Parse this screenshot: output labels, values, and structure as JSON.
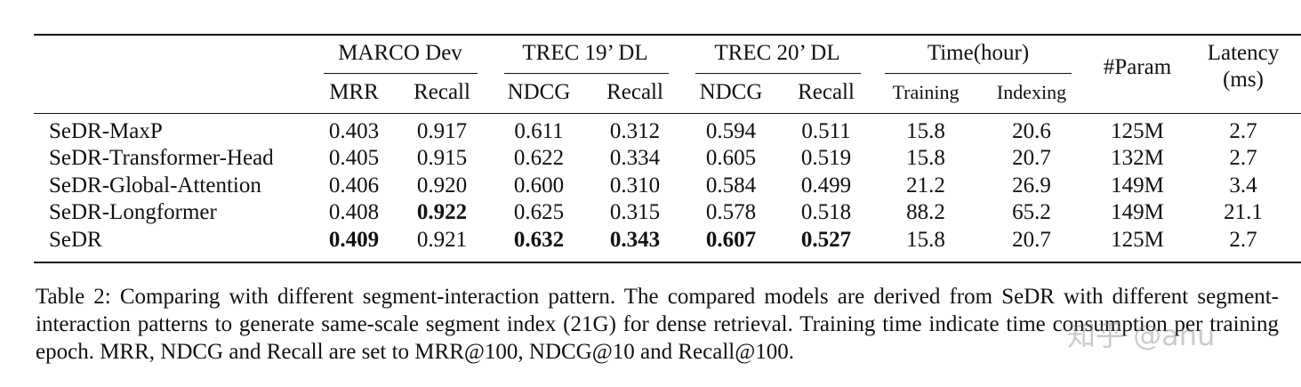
{
  "table": {
    "group_headers": [
      {
        "label": "MARCO Dev"
      },
      {
        "label": "TREC 19’ DL"
      },
      {
        "label": "TREC 20’ DL"
      },
      {
        "label": "Time(hour)"
      }
    ],
    "param_header": "#Param",
    "latency_header_line1": "Latency",
    "latency_header_line2": "(ms)",
    "sub_headers": [
      "MRR",
      "Recall",
      "NDCG",
      "Recall",
      "NDCG",
      "Recall",
      "Training",
      "Indexing"
    ],
    "rows": [
      {
        "model": "SeDR-MaxP",
        "cells": [
          "0.403",
          "0.917",
          "0.611",
          "0.312",
          "0.594",
          "0.511",
          "15.8",
          "20.6",
          "125M",
          "2.7"
        ],
        "bold": []
      },
      {
        "model": "SeDR-Transformer-Head",
        "cells": [
          "0.405",
          "0.915",
          "0.622",
          "0.334",
          "0.605",
          "0.519",
          "15.8",
          "20.7",
          "132M",
          "2.7"
        ],
        "bold": []
      },
      {
        "model": "SeDR-Global-Attention",
        "cells": [
          "0.406",
          "0.920",
          "0.600",
          "0.310",
          "0.584",
          "0.499",
          "21.2",
          "26.9",
          "149M",
          "3.4"
        ],
        "bold": []
      },
      {
        "model": "SeDR-Longformer",
        "cells": [
          "0.408",
          "0.922",
          "0.625",
          "0.315",
          "0.578",
          "0.518",
          "88.2",
          "65.2",
          "149M",
          "21.1"
        ],
        "bold": [
          1
        ]
      },
      {
        "model": "SeDR",
        "cells": [
          "0.409",
          "0.921",
          "0.632",
          "0.343",
          "0.607",
          "0.527",
          "15.8",
          "20.7",
          "125M",
          "2.7"
        ],
        "bold": [
          0,
          2,
          3,
          4,
          5
        ]
      }
    ]
  },
  "caption": "Table 2: Comparing with different segment-interaction pattern. The compared models are derived from SeDR with different segment-interaction patterns to generate same-scale segment index (21G) for dense retrieval. Training time indicate time consumption per training epoch. MRR, NDCG and Recall are set to MRR@100, NDCG@10 and Recall@100.",
  "watermark": "知乎 @anu"
}
